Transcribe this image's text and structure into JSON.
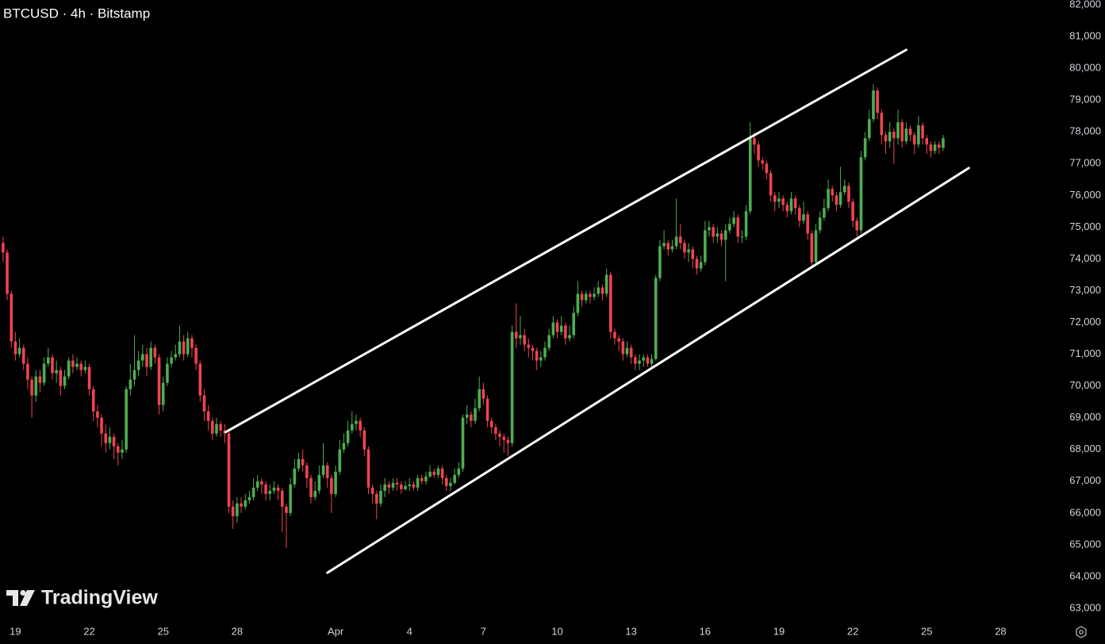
{
  "chart_data": {
    "type": "candlestick",
    "title": "BTCUSD · 4h · Bitstamp",
    "watermark": "TradingView",
    "up_color": "#4caf50",
    "down_color": "#ef4352",
    "xlim": [
      -15,
      1013
    ],
    "ylim": [
      63000,
      82000
    ],
    "xticks": [
      {
        "value": 0,
        "label": "19"
      },
      {
        "value": 72,
        "label": "22"
      },
      {
        "value": 144,
        "label": "25"
      },
      {
        "value": 216,
        "label": "28"
      },
      {
        "value": 312,
        "label": "Apr"
      },
      {
        "value": 384,
        "label": "4"
      },
      {
        "value": 456,
        "label": "7"
      },
      {
        "value": 528,
        "label": "10"
      },
      {
        "value": 600,
        "label": "13"
      },
      {
        "value": 672,
        "label": "16"
      },
      {
        "value": 744,
        "label": "19"
      },
      {
        "value": 816,
        "label": "22"
      },
      {
        "value": 888,
        "label": "25"
      },
      {
        "value": 960,
        "label": "28"
      }
    ],
    "yticks": [
      {
        "value": 63000,
        "label": "63,000"
      },
      {
        "value": 64000,
        "label": "64,000"
      },
      {
        "value": 65000,
        "label": "65,000"
      },
      {
        "value": 66000,
        "label": "66,000"
      },
      {
        "value": 67000,
        "label": "67,000"
      },
      {
        "value": 68000,
        "label": "68,000"
      },
      {
        "value": 69000,
        "label": "69,000"
      },
      {
        "value": 70000,
        "label": "70,000"
      },
      {
        "value": 71000,
        "label": "71,000"
      },
      {
        "value": 72000,
        "label": "72,000"
      },
      {
        "value": 73000,
        "label": "73,000"
      },
      {
        "value": 74000,
        "label": "74,000"
      },
      {
        "value": 75000,
        "label": "75,000"
      },
      {
        "value": 76000,
        "label": "76,000"
      },
      {
        "value": 77000,
        "label": "77,000"
      },
      {
        "value": 78000,
        "label": "78,000"
      },
      {
        "value": 79000,
        "label": "79,000"
      },
      {
        "value": 80000,
        "label": "80,000"
      },
      {
        "value": 81000,
        "label": "81,000"
      },
      {
        "value": 82000,
        "label": "82,000"
      }
    ],
    "trendlines": [
      {
        "color": "#ffffff",
        "x": [
          205,
          868
        ],
        "y": [
          68550,
          80580
        ]
      },
      {
        "color": "#ffffff",
        "x": [
          304,
          929
        ],
        "y": [
          64120,
          76860
        ]
      }
    ],
    "x": [
      -12,
      -8,
      -4,
      0,
      4,
      8,
      12,
      16,
      20,
      24,
      28,
      32,
      36,
      40,
      44,
      48,
      52,
      56,
      60,
      64,
      68,
      72,
      76,
      80,
      84,
      88,
      92,
      96,
      100,
      104,
      108,
      112,
      116,
      120,
      124,
      128,
      132,
      136,
      140,
      144,
      148,
      152,
      156,
      160,
      164,
      168,
      172,
      176,
      180,
      184,
      188,
      192,
      196,
      200,
      204,
      208,
      212,
      216,
      220,
      224,
      228,
      232,
      236,
      240,
      244,
      248,
      252,
      256,
      260,
      264,
      268,
      272,
      276,
      280,
      284,
      288,
      292,
      296,
      300,
      304,
      308,
      312,
      316,
      320,
      324,
      328,
      332,
      336,
      340,
      344,
      348,
      352,
      356,
      360,
      364,
      368,
      372,
      376,
      380,
      384,
      388,
      392,
      396,
      400,
      404,
      408,
      412,
      416,
      420,
      424,
      428,
      432,
      436,
      440,
      444,
      448,
      452,
      456,
      460,
      464,
      468,
      472,
      476,
      480,
      484,
      488,
      492,
      496,
      500,
      504,
      508,
      512,
      516,
      520,
      524,
      528,
      532,
      536,
      540,
      544,
      548,
      552,
      556,
      560,
      564,
      568,
      572,
      576,
      580,
      584,
      588,
      592,
      596,
      600,
      604,
      608,
      612,
      616,
      620,
      624,
      628,
      632,
      636,
      640,
      644,
      648,
      652,
      656,
      660,
      664,
      668,
      672,
      676,
      680,
      684,
      688,
      692,
      696,
      700,
      704,
      708,
      712,
      716,
      720,
      724,
      728,
      732,
      736,
      740,
      744,
      748,
      752,
      756,
      760,
      764,
      768,
      772,
      776,
      780,
      784,
      788,
      792,
      796,
      800,
      804,
      808,
      812,
      816,
      820,
      824,
      828,
      832,
      836,
      840,
      844,
      848,
      852,
      856,
      860,
      864,
      868,
      872,
      876,
      880,
      884,
      888,
      892,
      896,
      900,
      904
    ],
    "open": [
      74500,
      74200,
      72900,
      71400,
      71000,
      71200,
      70700,
      70200,
      69700,
      70300,
      70100,
      70700,
      70900,
      70400,
      70500,
      70000,
      70300,
      70800,
      70600,
      70700,
      70500,
      70600,
      69900,
      69200,
      69000,
      68500,
      68200,
      68400,
      68100,
      67900,
      68000,
      69900,
      70200,
      70500,
      70800,
      71000,
      70600,
      71200,
      70900,
      69400,
      70100,
      70700,
      70900,
      71000,
      71400,
      71000,
      71500,
      71200,
      70700,
      69700,
      69200,
      68900,
      68500,
      68800,
      68600,
      68500,
      66200,
      65900,
      66300,
      66200,
      66400,
      66500,
      66800,
      67000,
      66900,
      66600,
      66700,
      66800,
      66700,
      66200,
      66000,
      66900,
      67400,
      67700,
      67500,
      67100,
      66500,
      66700,
      67200,
      67500,
      67100,
      66600,
      67300,
      68000,
      68200,
      68600,
      68800,
      68900,
      68600,
      68000,
      66800,
      66600,
      66300,
      66700,
      66900,
      66800,
      66950,
      66900,
      66750,
      66850,
      66900,
      66800,
      67100,
      67000,
      67150,
      67300,
      67200,
      67400,
      67100,
      66850,
      66950,
      67200,
      67400,
      69000,
      69100,
      68900,
      69300,
      69900,
      69600,
      68900,
      68700,
      68500,
      68400,
      68300,
      68200,
      71700,
      71500,
      71600,
      71300,
      71200,
      71100,
      70800,
      70900,
      71200,
      71600,
      72000,
      71700,
      71900,
      71500,
      71600,
      72300,
      72900,
      72700,
      72900,
      72800,
      72900,
      73100,
      72900,
      73500,
      71700,
      71500,
      71400,
      71000,
      71200,
      70900,
      70700,
      70800,
      70900,
      70700,
      70850,
      73400,
      74400,
      74500,
      74300,
      74400,
      74700,
      74500,
      74200,
      74300,
      74000,
      73700,
      73900,
      74900,
      75000,
      74700,
      74800,
      74600,
      74900,
      75100,
      75300,
      74700,
      74700,
      75500,
      77800,
      77600,
      77100,
      77000,
      76700,
      76000,
      75800,
      75900,
      75700,
      75500,
      75900,
      75600,
      75200,
      75400,
      74800,
      73900,
      74900,
      75300,
      75600,
      76200,
      76000,
      75700,
      76100,
      76300,
      75800,
      75200,
      74900,
      77200,
      77800,
      78400,
      79300,
      78600,
      77900,
      77700,
      78000,
      77800,
      78300,
      77700,
      78100,
      77900,
      77600,
      78200,
      77800,
      77600,
      77400,
      77600,
      77500
    ],
    "high": [
      74700,
      74300,
      73000,
      71700,
      71500,
      71300,
      70900,
      70300,
      70500,
      70500,
      70900,
      71200,
      71000,
      70800,
      70600,
      70500,
      70900,
      71000,
      70900,
      70800,
      70800,
      70700,
      70000,
      69400,
      69100,
      68800,
      68700,
      68500,
      68200,
      68300,
      70000,
      70700,
      71600,
      71100,
      71300,
      71200,
      71400,
      71300,
      71000,
      70300,
      70900,
      71100,
      71300,
      71900,
      71600,
      71700,
      71600,
      71300,
      70800,
      69900,
      69400,
      69000,
      69000,
      68900,
      68800,
      68600,
      66400,
      66500,
      66500,
      66600,
      66700,
      67100,
      67200,
      67100,
      67000,
      66900,
      67000,
      66900,
      66800,
      66300,
      67100,
      67700,
      67900,
      68000,
      67600,
      67200,
      67000,
      67500,
      68200,
      67600,
      67200,
      67500,
      68300,
      68500,
      68900,
      69200,
      69100,
      69000,
      68700,
      68100,
      66900,
      66700,
      66900,
      67100,
      67000,
      67100,
      67100,
      67000,
      67000,
      67100,
      67000,
      67200,
      67200,
      67300,
      67500,
      67400,
      67500,
      67500,
      67200,
      67100,
      67400,
      67600,
      69100,
      69400,
      69200,
      69600,
      70300,
      70100,
      69700,
      69000,
      68800,
      68600,
      68500,
      68400,
      71900,
      72600,
      72200,
      71800,
      71500,
      71300,
      71200,
      71100,
      71400,
      71800,
      72200,
      72100,
      72200,
      72000,
      71900,
      72500,
      73300,
      73000,
      73000,
      73000,
      73100,
      73300,
      73200,
      73700,
      73600,
      71800,
      71600,
      71500,
      71400,
      71300,
      71000,
      71000,
      71000,
      71000,
      71000,
      73500,
      74600,
      74900,
      74600,
      74600,
      75900,
      75100,
      74600,
      74500,
      74400,
      74100,
      74100,
      75200,
      75200,
      75100,
      75000,
      74900,
      75100,
      75300,
      75500,
      75400,
      74900,
      75700,
      78300,
      78000,
      77700,
      77200,
      77100,
      76800,
      76100,
      76100,
      76000,
      75800,
      76100,
      76000,
      75700,
      75800,
      75500,
      74900,
      75100,
      75500,
      75900,
      76500,
      76300,
      76100,
      76900,
      76500,
      76400,
      75900,
      75300,
      77400,
      78000,
      78700,
      79500,
      79400,
      78700,
      78000,
      78300,
      78100,
      78700,
      78400,
      78300,
      78200,
      78000,
      78500,
      78300,
      77900,
      77700,
      77700,
      77700,
      77900
    ],
    "low": [
      73900,
      72700,
      71200,
      70800,
      70900,
      70500,
      69900,
      69000,
      69500,
      69800,
      70000,
      70600,
      70200,
      70100,
      69700,
      69900,
      70200,
      70400,
      70500,
      70300,
      70400,
      69700,
      68900,
      68700,
      68100,
      67900,
      68000,
      67700,
      67500,
      67700,
      67900,
      69700,
      70000,
      70300,
      70600,
      70300,
      70500,
      70700,
      69100,
      69200,
      70000,
      70600,
      70800,
      70900,
      70800,
      70900,
      70900,
      70500,
      69500,
      68900,
      68600,
      68300,
      68400,
      68400,
      68200,
      66000,
      65500,
      65700,
      66000,
      66100,
      66300,
      66400,
      66700,
      66600,
      66400,
      66400,
      66600,
      66400,
      65400,
      64900,
      65900,
      66800,
      67300,
      67300,
      66800,
      66300,
      66400,
      66600,
      67100,
      66800,
      66000,
      66500,
      67200,
      67900,
      68100,
      68500,
      68600,
      68400,
      67800,
      66600,
      66300,
      65800,
      66200,
      66500,
      66600,
      66700,
      66700,
      66600,
      66700,
      66700,
      66700,
      66700,
      66900,
      66900,
      67100,
      67100,
      67100,
      66900,
      66700,
      66700,
      66900,
      67100,
      67300,
      68800,
      68700,
      68800,
      69200,
      69400,
      68700,
      68500,
      68300,
      68100,
      67900,
      67800,
      68100,
      71200,
      71300,
      71100,
      70900,
      70800,
      70500,
      70600,
      70800,
      71100,
      71500,
      71500,
      71600,
      71300,
      71400,
      71500,
      72200,
      72500,
      72600,
      72600,
      72700,
      72800,
      72700,
      72800,
      71500,
      71300,
      71100,
      70800,
      70900,
      70700,
      70500,
      70500,
      70600,
      70600,
      70600,
      70800,
      73300,
      74300,
      74100,
      74200,
      74300,
      74300,
      74000,
      73900,
      73700,
      73500,
      73600,
      73800,
      74700,
      74500,
      74500,
      74400,
      73300,
      74800,
      75000,
      74500,
      74500,
      74600,
      75400,
      77300,
      76900,
      76800,
      76500,
      75800,
      75500,
      75600,
      75500,
      75300,
      75400,
      75400,
      75000,
      75100,
      74600,
      73700,
      73800,
      74800,
      75200,
      75500,
      75800,
      75500,
      75600,
      76000,
      75600,
      75000,
      74700,
      74800,
      77100,
      77700,
      78300,
      78400,
      77600,
      77300,
      77500,
      77000,
      77600,
      77500,
      77600,
      77700,
      77300,
      77500,
      77600,
      77300,
      77200,
      77300,
      77300,
      77400
    ],
    "close": [
      74200,
      72900,
      71400,
      71000,
      71200,
      70700,
      70200,
      69700,
      70300,
      70100,
      70700,
      70900,
      70400,
      70500,
      70000,
      70300,
      70800,
      70600,
      70700,
      70500,
      70600,
      69900,
      69200,
      69000,
      68500,
      68200,
      68400,
      68100,
      67900,
      68000,
      69900,
      70200,
      70500,
      70800,
      71000,
      70600,
      71200,
      70900,
      69400,
      70100,
      70700,
      70900,
      71000,
      71400,
      71000,
      71500,
      71200,
      70700,
      69700,
      69200,
      68900,
      68500,
      68800,
      68600,
      68500,
      66200,
      65900,
      66300,
      66200,
      66400,
      66500,
      66800,
      67000,
      66900,
      66600,
      66700,
      66800,
      66700,
      66200,
      66000,
      66900,
      67400,
      67700,
      67500,
      67100,
      66500,
      66700,
      67200,
      67500,
      67100,
      66600,
      67300,
      68000,
      68200,
      68600,
      68800,
      68900,
      68600,
      68000,
      66800,
      66600,
      66300,
      66700,
      66900,
      66800,
      66950,
      66900,
      66750,
      66850,
      66900,
      66800,
      67100,
      67000,
      67150,
      67300,
      67200,
      67400,
      67100,
      66850,
      66950,
      67200,
      67400,
      69000,
      69100,
      68900,
      69300,
      69900,
      69600,
      68900,
      68700,
      68500,
      68400,
      68300,
      68200,
      71700,
      71500,
      71600,
      71300,
      71200,
      71100,
      70800,
      70900,
      71200,
      71600,
      72000,
      71700,
      71900,
      71500,
      71600,
      72300,
      72900,
      72700,
      72900,
      72800,
      72900,
      73100,
      72900,
      73500,
      71700,
      71500,
      71400,
      71000,
      71200,
      70900,
      70700,
      70800,
      70900,
      70700,
      70850,
      73400,
      74400,
      74500,
      74300,
      74400,
      74700,
      74500,
      74200,
      74300,
      74000,
      73700,
      73900,
      74900,
      75000,
      74700,
      74800,
      74600,
      74900,
      75100,
      75300,
      74700,
      74700,
      75500,
      77800,
      77600,
      77100,
      77000,
      76700,
      76000,
      75800,
      75900,
      75700,
      75500,
      75900,
      75600,
      75200,
      75400,
      74800,
      73900,
      74900,
      75300,
      75600,
      76200,
      76000,
      75700,
      76100,
      76300,
      75800,
      75200,
      74900,
      77200,
      77800,
      78400,
      79300,
      78600,
      77900,
      77700,
      78000,
      77800,
      78300,
      77700,
      78100,
      77900,
      77600,
      78200,
      77800,
      77600,
      77400,
      77600,
      77500,
      77800
    ]
  }
}
